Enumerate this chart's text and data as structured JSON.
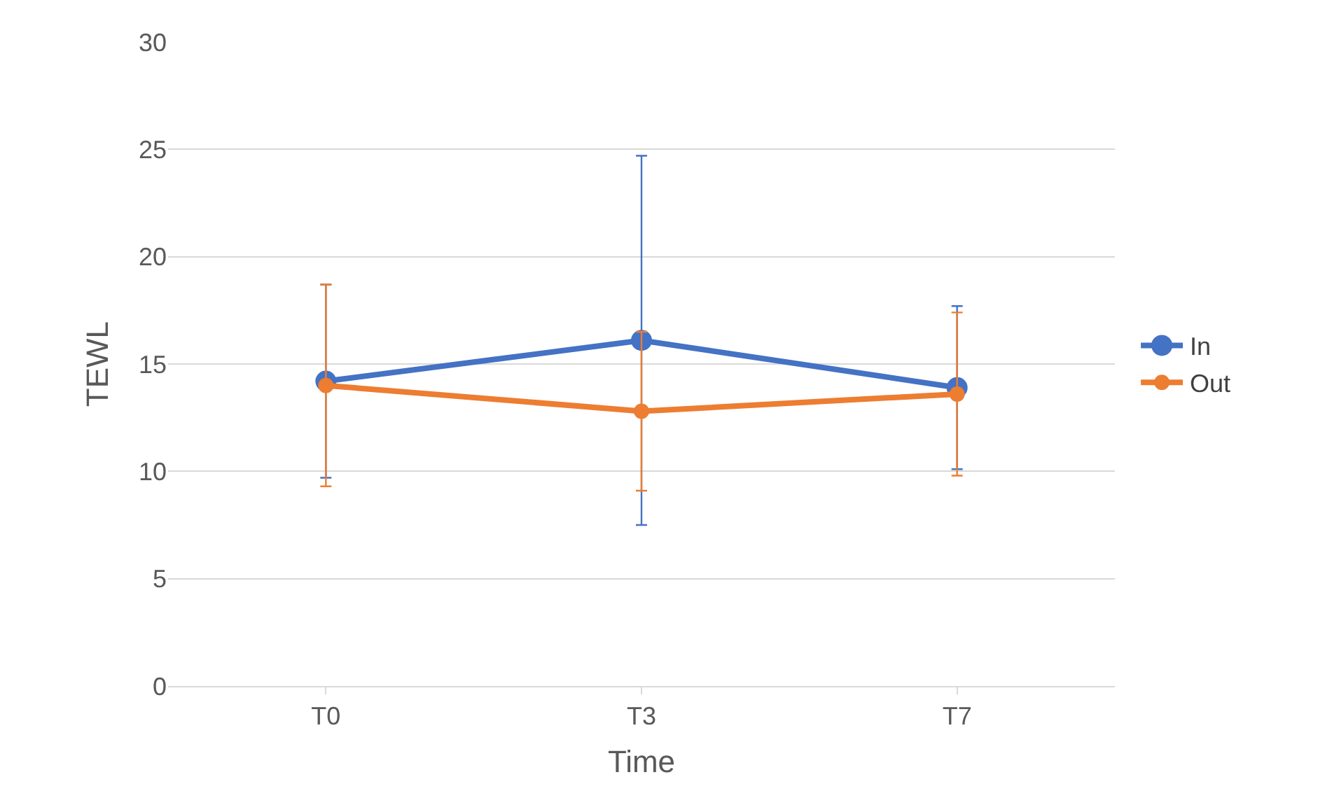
{
  "chart_data": {
    "type": "line",
    "xlabel": "Time",
    "ylabel": "TEWL",
    "categories": [
      "T0",
      "T3",
      "T7"
    ],
    "series": [
      {
        "name": "In",
        "color": "#4472c4",
        "values": [
          14.2,
          16.1,
          13.9
        ],
        "errors": [
          [
            9.7,
            18.7
          ],
          [
            7.5,
            24.7
          ],
          [
            10.1,
            17.7
          ]
        ]
      },
      {
        "name": "Out",
        "color": "#ed7d31",
        "values": [
          14.0,
          12.8,
          13.6
        ],
        "errors": [
          [
            9.3,
            18.7
          ],
          [
            9.1,
            16.5
          ],
          [
            9.8,
            17.4
          ]
        ]
      }
    ],
    "ylim": [
      0,
      30
    ],
    "yticks": [
      0,
      5,
      10,
      15,
      20,
      25,
      30
    ],
    "grid": "y",
    "legend": "right",
    "marker": "circle",
    "line_style": "solid"
  }
}
